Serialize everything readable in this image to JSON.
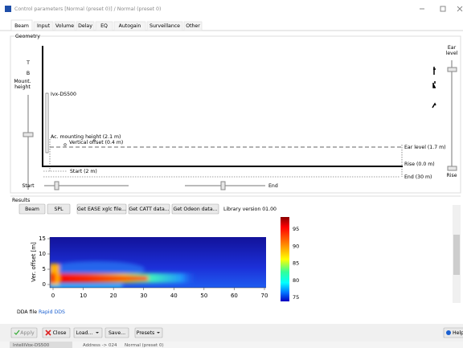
{
  "window": {
    "title": "Control parameters [Normal (preset 0)] / Normal (preset 0)"
  },
  "tabs": [
    "Beam",
    "Input",
    "Volume",
    "Delay",
    "EQ",
    "Autogain",
    "Surveillance",
    "Other"
  ],
  "geometry": {
    "title": "Geometry",
    "top_label": "T",
    "bottom_label": "B",
    "mount_label": "Mount. height",
    "ear_label": "Ear level",
    "rise_label": "Rise",
    "start_label": "Start",
    "end_label": "End",
    "diagram": {
      "device": "Ivx-DS500",
      "mounting": "Ac. mounting height (2.1 m)",
      "offset": "Vertical offset (0.4 m)",
      "ear": "Ear level (1.7 m)",
      "rise": "Rise (0.0 m)",
      "end": "End (30 m)",
      "start": "Start (2 m)"
    }
  },
  "results": {
    "title": "Results",
    "buttons": [
      "Beam",
      "SPL",
      "Get EASE xglc file...",
      "Get CATT data...",
      "Get Odeon data..."
    ],
    "library": "Library version 01.00",
    "plot": {
      "ylabel": "Ver. offset [m]",
      "xticks": [
        0,
        10,
        20,
        30,
        40,
        50,
        60,
        70
      ],
      "yticks": [
        0,
        5,
        10,
        15
      ],
      "colorbar_ticks": [
        75,
        80,
        85,
        90,
        95
      ]
    }
  },
  "dda": {
    "label": "DDA file",
    "link": "Rapid DDS"
  },
  "footer": {
    "apply": "Apply",
    "close": "Close",
    "load": "Load...",
    "save": "Save...",
    "presets": "Presets",
    "help": "Help"
  },
  "status": [
    "IntelliVox-DS500",
    "Address -> 024",
    "Normal (preset 0)"
  ]
}
